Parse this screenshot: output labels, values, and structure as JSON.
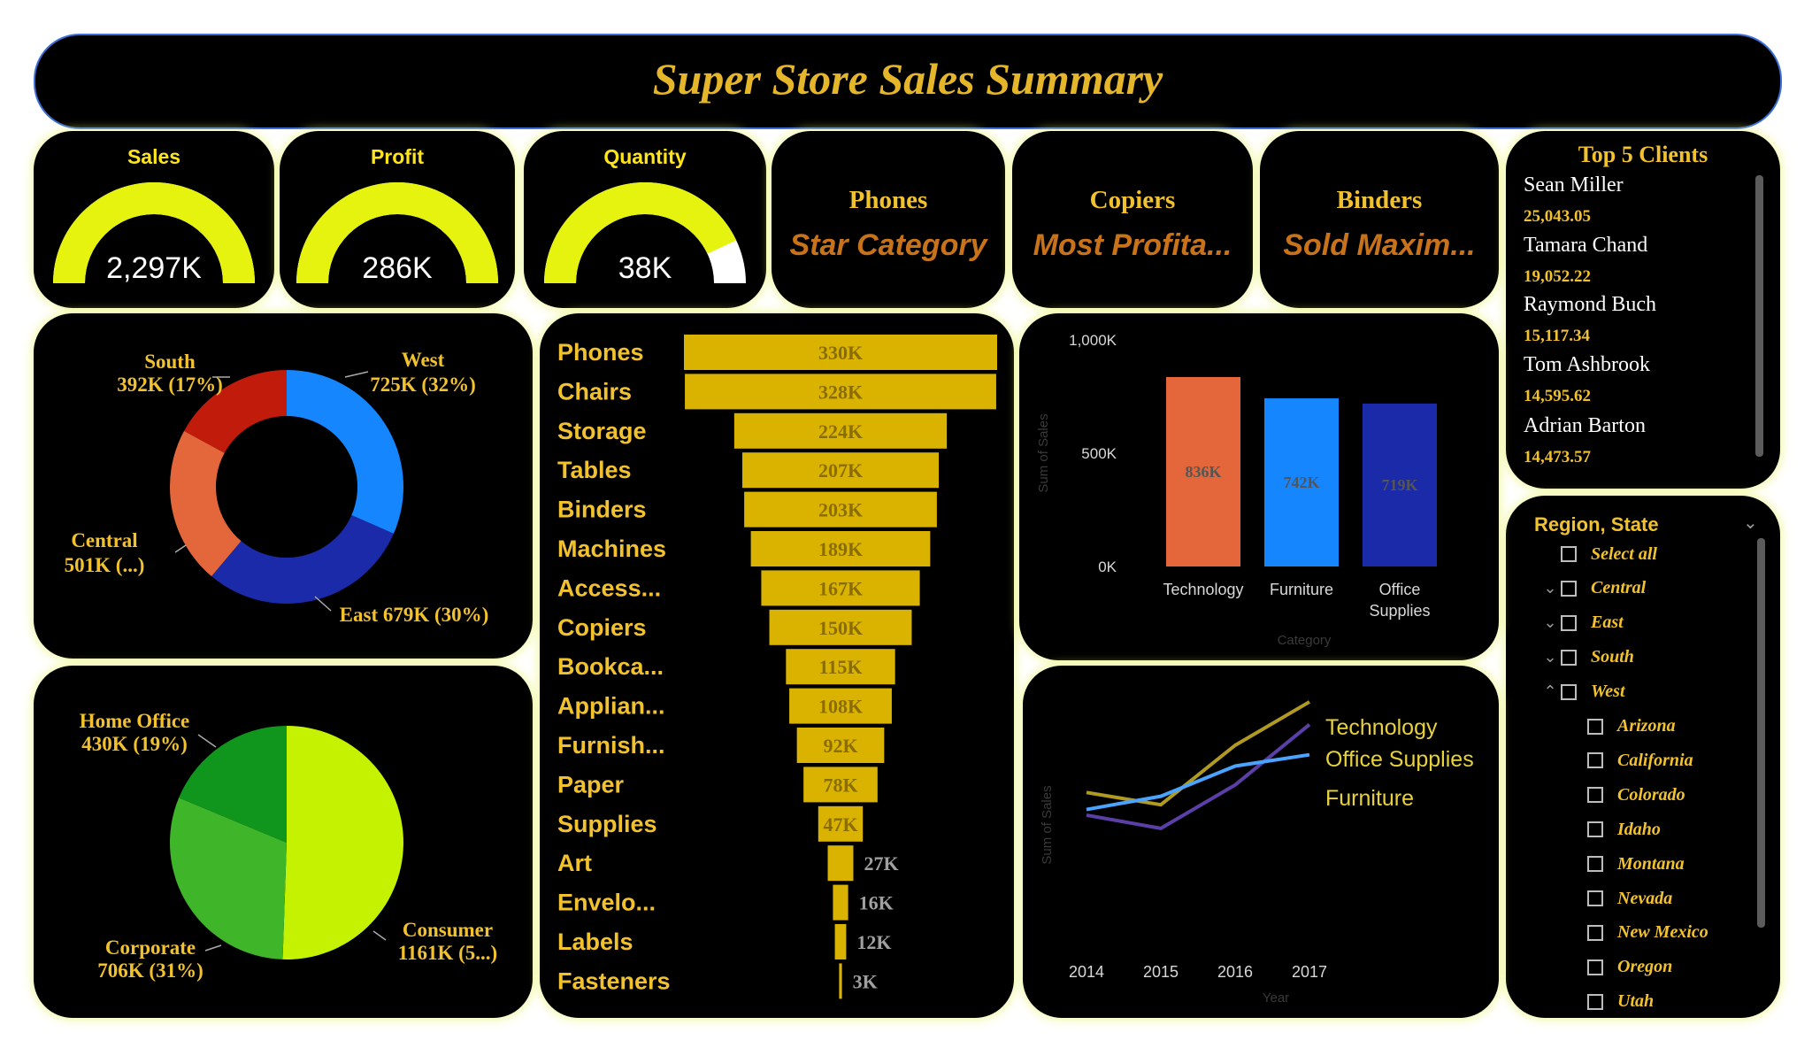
{
  "header": {
    "title": "Super Store Sales Summary"
  },
  "colors": {
    "gauge_fill": "#e6f30f",
    "gauge_track": "#ffffff",
    "accent": "#f2c22e",
    "funnel": "#d9b300"
  },
  "kpis": [
    {
      "label": "Sales",
      "value": "2,297K",
      "fraction": 1.0
    },
    {
      "label": "Profit",
      "value": "286K",
      "fraction": 1.0
    },
    {
      "label": "Quantity",
      "value": "38K",
      "fraction": 0.86
    }
  ],
  "cards": [
    {
      "head": "Phones",
      "sub": "Star Category"
    },
    {
      "head": "Copiers",
      "sub": "Most Profita..."
    },
    {
      "head": "Binders",
      "sub": "Sold Maxim..."
    }
  ],
  "top_clients": {
    "title": "Top 5 Clients",
    "items": [
      {
        "name": "Sean Miller",
        "value": "25,043.05"
      },
      {
        "name": "Tamara Chand",
        "value": "19,052.22"
      },
      {
        "name": "Raymond Buch",
        "value": "15,117.34"
      },
      {
        "name": "Tom Ashbrook",
        "value": "14,595.62"
      },
      {
        "name": "Adrian Barton",
        "value": "14,473.57"
      }
    ]
  },
  "slicer": {
    "title": "Region, State",
    "items": [
      {
        "label": "Select all",
        "chevron": ""
      },
      {
        "label": "Central",
        "chevron": "down"
      },
      {
        "label": "East",
        "chevron": "down"
      },
      {
        "label": "South",
        "chevron": "down"
      },
      {
        "label": "West",
        "chevron": "up"
      },
      {
        "label": "Arizona",
        "chevron": "",
        "indent": true
      },
      {
        "label": "California",
        "chevron": "",
        "indent": true
      },
      {
        "label": "Colorado",
        "chevron": "",
        "indent": true
      },
      {
        "label": "Idaho",
        "chevron": "",
        "indent": true
      },
      {
        "label": "Montana",
        "chevron": "",
        "indent": true
      },
      {
        "label": "Nevada",
        "chevron": "",
        "indent": true
      },
      {
        "label": "New Mexico",
        "chevron": "",
        "indent": true
      },
      {
        "label": "Oregon",
        "chevron": "",
        "indent": true
      },
      {
        "label": "Utah",
        "chevron": "",
        "indent": true
      }
    ]
  },
  "chart_data": [
    {
      "type": "pie",
      "variant": "donut",
      "slices": [
        {
          "label": "West",
          "value": 725,
          "text": "725K (32%)",
          "color": "#1686ff"
        },
        {
          "label": "East",
          "value": 679,
          "text": "679K (30%)",
          "color": "#1a2aa8"
        },
        {
          "label": "Central",
          "value": 501,
          "text": "501K (...)",
          "color": "#e4673b"
        },
        {
          "label": "South",
          "value": 392,
          "text": "392K (17%)",
          "color": "#c11b0b"
        }
      ]
    },
    {
      "type": "pie",
      "slices": [
        {
          "label": "Consumer",
          "value": 1161,
          "text": "1161K (5...)",
          "color": "#c4f200"
        },
        {
          "label": "Corporate",
          "value": 706,
          "text": "706K (31%)",
          "color": "#3fb52a"
        },
        {
          "label": "Home Office",
          "value": 430,
          "text": "430K (19%)",
          "color": "#10961c"
        }
      ]
    },
    {
      "type": "bar",
      "variant": "funnel",
      "categories": [
        "Phones",
        "Chairs",
        "Storage",
        "Tables",
        "Binders",
        "Machines",
        "Access...",
        "Copiers",
        "Bookca...",
        "Applian...",
        "Furnish...",
        "Paper",
        "Supplies",
        "Art",
        "Envelo...",
        "Labels",
        "Fasteners"
      ],
      "values": [
        330,
        328,
        224,
        207,
        203,
        189,
        167,
        150,
        115,
        108,
        92,
        78,
        47,
        27,
        16,
        12,
        3
      ],
      "labels": [
        "330K",
        "328K",
        "224K",
        "207K",
        "203K",
        "189K",
        "167K",
        "150K",
        "115K",
        "108K",
        "92K",
        "78K",
        "47K",
        "27K",
        "16K",
        "12K",
        "3K"
      ]
    },
    {
      "type": "bar",
      "categories": [
        "Technology",
        "Furniture",
        "Office Supplies"
      ],
      "values": [
        836,
        742,
        719
      ],
      "labels": [
        "836K",
        "742K",
        "719K"
      ],
      "colors": [
        "#e4673b",
        "#1686ff",
        "#1a2aa8"
      ],
      "xlabel": "Category",
      "ylabel": "Sum of Sales",
      "yticks": [
        "0K",
        "500K",
        "1,000K"
      ],
      "ylim": [
        0,
        1000
      ]
    },
    {
      "type": "line",
      "x": [
        "2014",
        "2015",
        "2016",
        "2017"
      ],
      "xlabel": "Year",
      "ylabel": "Sum of Sales",
      "ylim": [
        0,
        300
      ],
      "series": [
        {
          "name": "Technology",
          "values": [
            175,
            162,
            225,
            271
          ],
          "color": "#b09a22"
        },
        {
          "name": "Office Supplies",
          "values": [
            151,
            137,
            183,
            247
          ],
          "color": "#5b3fa6"
        },
        {
          "name": "Furniture",
          "values": [
            157,
            171,
            203,
            215
          ],
          "color": "#4aa3ff"
        }
      ]
    }
  ]
}
